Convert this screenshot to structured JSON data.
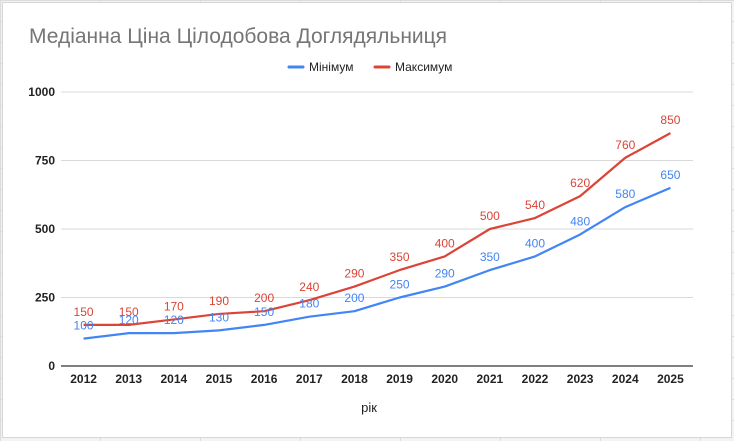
{
  "chart_data": {
    "type": "line",
    "title": "Медіанна Ціна Цілодобова Доглядяльниця",
    "xlabel": "рік",
    "ylabel": "",
    "x": [
      "2012",
      "2013",
      "2014",
      "2015",
      "2016",
      "2017",
      "2018",
      "2019",
      "2020",
      "2021",
      "2022",
      "2023",
      "2024",
      "2025"
    ],
    "ylim": [
      0,
      1000
    ],
    "yticks": [
      "0",
      "250",
      "500",
      "750",
      "1000"
    ],
    "grid": true,
    "legend_position": "top",
    "series": [
      {
        "name": "Мінімум",
        "color": "#4285f4",
        "values": [
          100,
          120,
          120,
          130,
          150,
          180,
          200,
          250,
          290,
          350,
          400,
          480,
          580,
          650
        ]
      },
      {
        "name": "Максимум",
        "color": "#db4437",
        "values": [
          150,
          150,
          170,
          190,
          200,
          240,
          290,
          350,
          400,
          500,
          540,
          620,
          760,
          850
        ]
      }
    ]
  }
}
